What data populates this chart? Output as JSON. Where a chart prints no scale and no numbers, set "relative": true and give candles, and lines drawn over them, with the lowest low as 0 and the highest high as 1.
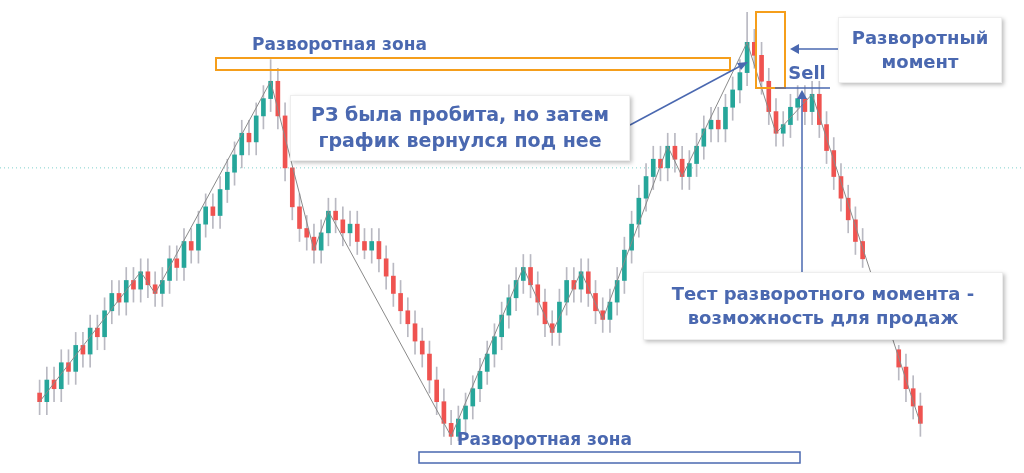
{
  "chart_data": {
    "type": "candlestick",
    "relative": true,
    "categories": [
      null,
      null,
      null,
      null,
      null,
      null,
      null,
      null,
      null,
      null,
      null,
      null,
      null,
      null,
      null,
      null,
      null,
      null,
      null,
      null,
      null,
      null,
      null,
      null,
      null,
      null,
      null,
      null,
      null,
      null,
      null,
      null,
      null,
      null,
      null,
      null,
      null,
      null,
      null,
      null,
      null,
      null,
      null,
      null,
      null,
      null,
      null,
      null,
      null,
      null,
      null,
      null,
      null,
      null,
      null,
      null,
      null,
      null,
      null,
      null,
      null,
      null,
      null,
      null,
      null,
      null,
      null,
      null,
      null,
      null,
      null,
      null,
      null,
      null,
      null,
      null,
      null,
      null,
      null,
      null,
      null,
      null,
      null,
      null,
      null,
      null,
      null,
      null,
      null,
      null,
      null,
      null,
      null,
      null,
      null,
      null,
      null,
      null,
      null,
      null,
      null,
      null,
      null,
      null,
      null,
      null,
      null,
      null,
      null,
      null,
      null,
      null,
      null,
      null,
      null,
      null,
      null,
      null,
      null,
      null,
      null,
      null,
      null
    ],
    "ohlc": [
      [
        0.12,
        0.15,
        0.07,
        0.1
      ],
      [
        0.1,
        0.18,
        0.07,
        0.15
      ],
      [
        0.15,
        0.18,
        0.1,
        0.13
      ],
      [
        0.13,
        0.22,
        0.1,
        0.19
      ],
      [
        0.19,
        0.22,
        0.14,
        0.17
      ],
      [
        0.17,
        0.26,
        0.14,
        0.23
      ],
      [
        0.23,
        0.26,
        0.18,
        0.21
      ],
      [
        0.21,
        0.3,
        0.18,
        0.27
      ],
      [
        0.27,
        0.3,
        0.22,
        0.25
      ],
      [
        0.25,
        0.34,
        0.22,
        0.31
      ],
      [
        0.31,
        0.38,
        0.28,
        0.35
      ],
      [
        0.35,
        0.38,
        0.3,
        0.33
      ],
      [
        0.33,
        0.41,
        0.3,
        0.38
      ],
      [
        0.38,
        0.41,
        0.33,
        0.36
      ],
      [
        0.36,
        0.43,
        0.33,
        0.4
      ],
      [
        0.4,
        0.43,
        0.34,
        0.37
      ],
      [
        0.37,
        0.4,
        0.32,
        0.35
      ],
      [
        0.35,
        0.41,
        0.32,
        0.38
      ],
      [
        0.38,
        0.46,
        0.35,
        0.43
      ],
      [
        0.43,
        0.46,
        0.38,
        0.41
      ],
      [
        0.41,
        0.5,
        0.38,
        0.47
      ],
      [
        0.47,
        0.5,
        0.42,
        0.45
      ],
      [
        0.45,
        0.54,
        0.42,
        0.51
      ],
      [
        0.51,
        0.58,
        0.48,
        0.55
      ],
      [
        0.55,
        0.58,
        0.5,
        0.53
      ],
      [
        0.53,
        0.62,
        0.5,
        0.59
      ],
      [
        0.59,
        0.66,
        0.56,
        0.63
      ],
      [
        0.63,
        0.7,
        0.6,
        0.67
      ],
      [
        0.67,
        0.75,
        0.64,
        0.72
      ],
      [
        0.72,
        0.75,
        0.67,
        0.7
      ],
      [
        0.7,
        0.79,
        0.67,
        0.76
      ],
      [
        0.76,
        0.83,
        0.73,
        0.8
      ],
      [
        0.8,
        0.89,
        0.77,
        0.84
      ],
      [
        0.84,
        0.87,
        0.73,
        0.76
      ],
      [
        0.76,
        0.79,
        0.61,
        0.64
      ],
      [
        0.64,
        0.64,
        0.52,
        0.55
      ],
      [
        0.55,
        0.58,
        0.47,
        0.5
      ],
      [
        0.5,
        0.53,
        0.45,
        0.48
      ],
      [
        0.48,
        0.51,
        0.42,
        0.45
      ],
      [
        0.45,
        0.52,
        0.42,
        0.49
      ],
      [
        0.49,
        0.57,
        0.46,
        0.54
      ],
      [
        0.54,
        0.57,
        0.49,
        0.52
      ],
      [
        0.52,
        0.55,
        0.46,
        0.49
      ],
      [
        0.49,
        0.54,
        0.46,
        0.51
      ],
      [
        0.51,
        0.54,
        0.44,
        0.47
      ],
      [
        0.47,
        0.5,
        0.43,
        0.45
      ],
      [
        0.45,
        0.5,
        0.42,
        0.47
      ],
      [
        0.47,
        0.5,
        0.4,
        0.43
      ],
      [
        0.43,
        0.46,
        0.36,
        0.39
      ],
      [
        0.39,
        0.42,
        0.32,
        0.35
      ],
      [
        0.35,
        0.38,
        0.28,
        0.31
      ],
      [
        0.31,
        0.34,
        0.25,
        0.28
      ],
      [
        0.28,
        0.31,
        0.21,
        0.24
      ],
      [
        0.24,
        0.27,
        0.18,
        0.21
      ],
      [
        0.21,
        0.24,
        0.12,
        0.15
      ],
      [
        0.15,
        0.18,
        0.07,
        0.1
      ],
      [
        0.1,
        0.13,
        0.02,
        0.05
      ],
      [
        0.05,
        0.08,
        0.0,
        0.02
      ],
      [
        0.02,
        0.09,
        0.01,
        0.06
      ],
      [
        0.06,
        0.12,
        0.03,
        0.09
      ],
      [
        0.09,
        0.16,
        0.06,
        0.13
      ],
      [
        0.13,
        0.2,
        0.1,
        0.17
      ],
      [
        0.17,
        0.24,
        0.14,
        0.21
      ],
      [
        0.21,
        0.28,
        0.18,
        0.25
      ],
      [
        0.25,
        0.33,
        0.22,
        0.3
      ],
      [
        0.3,
        0.37,
        0.27,
        0.34
      ],
      [
        0.34,
        0.41,
        0.31,
        0.38
      ],
      [
        0.38,
        0.44,
        0.35,
        0.41
      ],
      [
        0.41,
        0.44,
        0.34,
        0.37
      ],
      [
        0.37,
        0.4,
        0.3,
        0.33
      ],
      [
        0.33,
        0.36,
        0.25,
        0.28
      ],
      [
        0.28,
        0.31,
        0.23,
        0.26
      ],
      [
        0.26,
        0.36,
        0.23,
        0.33
      ],
      [
        0.33,
        0.41,
        0.3,
        0.38
      ],
      [
        0.38,
        0.41,
        0.33,
        0.36
      ],
      [
        0.36,
        0.43,
        0.33,
        0.4
      ],
      [
        0.4,
        0.43,
        0.32,
        0.35
      ],
      [
        0.35,
        0.38,
        0.28,
        0.31
      ],
      [
        0.31,
        0.34,
        0.26,
        0.29
      ],
      [
        0.29,
        0.36,
        0.26,
        0.33
      ],
      [
        0.33,
        0.41,
        0.3,
        0.38
      ],
      [
        0.38,
        0.48,
        0.35,
        0.45
      ],
      [
        0.45,
        0.54,
        0.42,
        0.51
      ],
      [
        0.51,
        0.6,
        0.48,
        0.57
      ],
      [
        0.57,
        0.65,
        0.54,
        0.62
      ],
      [
        0.62,
        0.69,
        0.59,
        0.66
      ],
      [
        0.66,
        0.69,
        0.61,
        0.64
      ],
      [
        0.64,
        0.72,
        0.61,
        0.69
      ],
      [
        0.69,
        0.72,
        0.63,
        0.66
      ],
      [
        0.66,
        0.69,
        0.59,
        0.62
      ],
      [
        0.62,
        0.68,
        0.59,
        0.65
      ],
      [
        0.65,
        0.72,
        0.62,
        0.69
      ],
      [
        0.69,
        0.76,
        0.66,
        0.73
      ],
      [
        0.73,
        0.78,
        0.7,
        0.75
      ],
      [
        0.75,
        0.78,
        0.7,
        0.73
      ],
      [
        0.73,
        0.81,
        0.7,
        0.78
      ],
      [
        0.78,
        0.85,
        0.75,
        0.82
      ],
      [
        0.82,
        0.89,
        0.79,
        0.86
      ],
      [
        0.86,
        1.0,
        0.83,
        0.93
      ],
      [
        0.93,
        0.96,
        0.87,
        0.9
      ],
      [
        0.9,
        0.93,
        0.81,
        0.84
      ],
      [
        0.84,
        0.87,
        0.74,
        0.77
      ],
      [
        0.77,
        0.8,
        0.69,
        0.72
      ],
      [
        0.72,
        0.77,
        0.69,
        0.74
      ],
      [
        0.74,
        0.81,
        0.71,
        0.78
      ],
      [
        0.78,
        0.83,
        0.75,
        0.8
      ],
      [
        0.8,
        0.83,
        0.74,
        0.77
      ],
      [
        0.77,
        0.84,
        0.74,
        0.81
      ],
      [
        0.81,
        0.84,
        0.71,
        0.74
      ],
      [
        0.74,
        0.77,
        0.65,
        0.68
      ],
      [
        0.68,
        0.71,
        0.59,
        0.62
      ],
      [
        0.62,
        0.65,
        0.54,
        0.57
      ],
      [
        0.57,
        0.6,
        0.49,
        0.52
      ],
      [
        0.52,
        0.55,
        0.44,
        0.47
      ],
      [
        0.47,
        0.5,
        0.41,
        0.43
      ],
      null,
      null,
      null,
      null,
      [
        0.22,
        0.23,
        0.15,
        0.18
      ],
      [
        0.18,
        0.21,
        0.1,
        0.13
      ],
      [
        0.13,
        0.16,
        0.06,
        0.09
      ],
      [
        0.09,
        0.12,
        0.02,
        0.05
      ]
    ],
    "colors": [
      "#ef5350",
      "#26a69a",
      "#ef5350",
      "#26a69a",
      "#ef5350",
      "#26a69a",
      "#ef5350",
      "#26a69a",
      "#ef5350",
      "#26a69a",
      "#26a69a",
      "#ef5350",
      "#26a69a",
      "#ef5350",
      "#26a69a",
      "#ef5350",
      "#ef5350",
      "#26a69a",
      "#26a69a",
      "#ef5350",
      "#26a69a",
      "#ef5350",
      "#26a69a",
      "#26a69a",
      "#ef5350",
      "#26a69a",
      "#26a69a",
      "#26a69a",
      "#26a69a",
      "#ef5350",
      "#26a69a",
      "#26a69a",
      "#26a69a",
      "#ef5350",
      "#ef5350",
      "#ef5350",
      "#ef5350",
      "#ef5350",
      "#ef5350",
      "#26a69a",
      "#26a69a",
      "#ef5350",
      "#ef5350",
      "#26a69a",
      "#ef5350",
      "#ef5350",
      "#26a69a",
      "#ef5350",
      "#ef5350",
      "#ef5350",
      "#ef5350",
      "#ef5350",
      "#ef5350",
      "#ef5350",
      "#ef5350",
      "#ef5350",
      "#ef5350",
      "#ef5350",
      "#26a69a",
      "#26a69a",
      "#26a69a",
      "#26a69a",
      "#26a69a",
      "#26a69a",
      "#26a69a",
      "#26a69a",
      "#26a69a",
      "#26a69a",
      "#ef5350",
      "#ef5350",
      "#ef5350",
      "#ef5350",
      "#26a69a",
      "#26a69a",
      "#ef5350",
      "#26a69a",
      "#ef5350",
      "#ef5350",
      "#ef5350",
      "#26a69a",
      "#26a69a",
      "#26a69a",
      "#26a69a",
      "#26a69a",
      "#26a69a",
      "#26a69a",
      "#ef5350",
      "#26a69a",
      "#ef5350",
      "#ef5350",
      "#26a69a",
      "#26a69a",
      "#26a69a",
      "#26a69a",
      "#ef5350",
      "#26a69a",
      "#26a69a",
      "#26a69a",
      "#26a69a",
      "#ef5350",
      "#ef5350",
      "#ef5350",
      "#ef5350",
      "#26a69a",
      "#26a69a",
      "#26a69a",
      "#ef5350",
      "#26a69a",
      "#ef5350",
      "#ef5350",
      "#ef5350",
      "#ef5350",
      "#ef5350",
      "#ef5350",
      "#ef5350",
      null,
      null,
      null,
      null,
      "#ef5350",
      "#ef5350",
      "#ef5350",
      "#ef5350"
    ],
    "series": [
      {
        "type": "line",
        "color": "#8a8a8a",
        "values": [
          0.1,
          null,
          null,
          null,
          null,
          null,
          null,
          null,
          null,
          null,
          null,
          null,
          null,
          null,
          0.4,
          null,
          0.35,
          null,
          null,
          null,
          null,
          null,
          null,
          null,
          null,
          null,
          null,
          null,
          null,
          null,
          null,
          null,
          0.84,
          null,
          null,
          null,
          null,
          null,
          0.45,
          null,
          0.54,
          null,
          null,
          null,
          null,
          null,
          null,
          null,
          null,
          null,
          null,
          null,
          null,
          null,
          null,
          null,
          null,
          0.02,
          null,
          null,
          null,
          null,
          null,
          null,
          null,
          null,
          null,
          0.41,
          null,
          null,
          null,
          0.26,
          null,
          null,
          null,
          0.4,
          null,
          null,
          0.29,
          null,
          null,
          null,
          null,
          null,
          null,
          null,
          null,
          0.69,
          null,
          0.62,
          null,
          null,
          null,
          null,
          null,
          null,
          null,
          null,
          0.93,
          null,
          null,
          null,
          0.72,
          null,
          null,
          null,
          null,
          0.81,
          null,
          null,
          null,
          null,
          null,
          null,
          null,
          null,
          null,
          null,
          null,
          null,
          null,
          null,
          0.05
        ]
      }
    ],
    "ref_lines": [
      {
        "axis": "y",
        "value": 0.64,
        "color": "#7fd1cc",
        "line_style": "dotted"
      }
    ],
    "annotations": [
      "Разворотная зона",
      "РЗ была пробита, но затем график вернулся под нее",
      "Разворотный момент",
      "Sell",
      "Тест разворотного момента - возможность для продаж",
      "Разворотная зона"
    ]
  }
}
